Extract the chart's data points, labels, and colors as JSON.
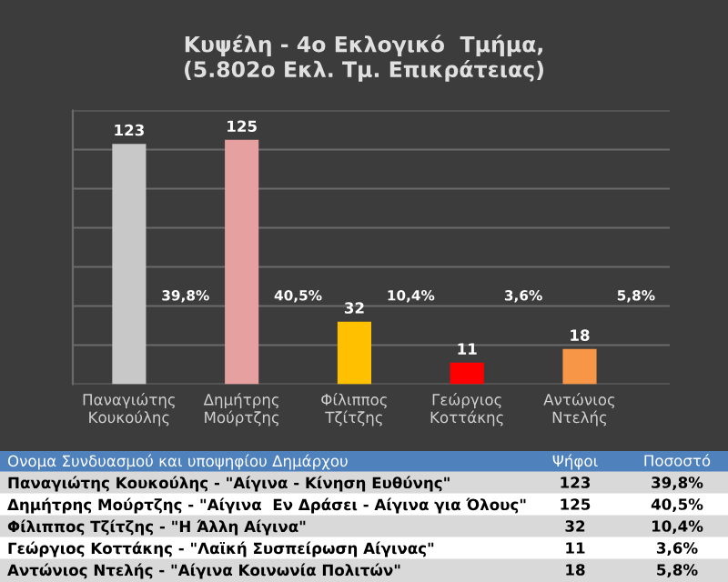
{
  "chart_data": {
    "type": "bar",
    "title": "Κυψέλη - 4ο Εκλογικό  Τμήμα,\n(5.802ο Εκλ. Τμ. Επικράτειας)",
    "categories": [
      "Παναγιώτης\nΚουκούλης",
      "Δημήτρης\nΜούρτζης",
      "Φίλιππος\nΤζίτζης",
      "Γεώργιος\nΚοττάκης",
      "Αντώνιος\nΝτελής"
    ],
    "values": [
      123,
      125,
      32,
      11,
      18
    ],
    "colors": [
      "#c8c8c8",
      "#e6a0a0",
      "#ffc000",
      "#ff0000",
      "#f79646"
    ],
    "data_labels": true,
    "ylim": [
      0,
      140
    ],
    "yticks": [
      {
        "value": 0,
        "label": null
      },
      {
        "value": 20,
        "label": null
      },
      {
        "value": 40,
        "label": null
      },
      {
        "value": 60,
        "label": null
      },
      {
        "value": 80,
        "label": null
      },
      {
        "value": 100,
        "label": null
      },
      {
        "value": 120,
        "label": null
      },
      {
        "value": 140,
        "label": null
      }
    ],
    "tick_labels": "x",
    "grid": "y",
    "annotations": [
      "39,8%",
      "40,5%",
      "10,4%",
      "3,6%",
      "5,8%",
      "Ονομα Συνδυασμού και υποψηφίου Δημάρχου",
      "Ψήφοι",
      "Ποσοστό",
      "Παναγιώτης Κουκούλης - \"Αίγινα - Κίνηση Ευθύνης\"",
      "123",
      "39,8%",
      "Δημήτρης Μούρτζης - \"Αίγινα  Εν Δράσει - Αίγινα για Όλους\"",
      "125",
      "40,5%",
      "Φίλιππος Τζίτζης - \"Η Άλλη Αίγινα\"",
      "32",
      "10,4%",
      "Γεώργιος Κοττάκης - \"Λαϊκή Συσπείρωση Αίγινας\"",
      "11",
      "3,6%",
      "Αντώνιος Ντελής - \"Αίγινα Κοινωνία Πολιτών\"",
      "18",
      "5,8%"
    ]
  }
}
